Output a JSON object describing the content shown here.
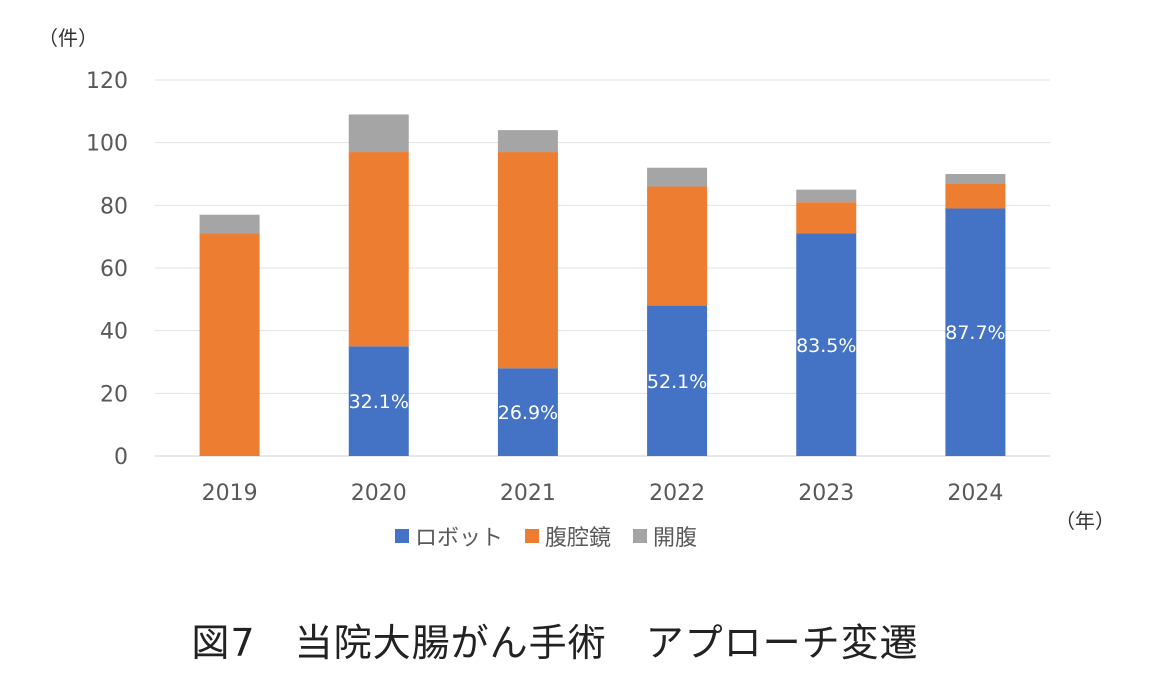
{
  "chart_data": {
    "type": "bar",
    "stacked": true,
    "title": "図7　当院大腸がん手術　アプローチ変遷",
    "ylabel": "（件）",
    "xlabel": "（年）",
    "ylim": [
      0,
      120
    ],
    "yticks": [
      0,
      20,
      40,
      60,
      80,
      100,
      120
    ],
    "grid": true,
    "legend_position": "bottom",
    "categories": [
      "2019",
      "2020",
      "2021",
      "2022",
      "2023",
      "2024"
    ],
    "series": [
      {
        "name": "ロボット",
        "color": "#4472c4",
        "values": [
          0,
          35,
          28,
          48,
          71,
          79
        ]
      },
      {
        "name": "腹腔鏡",
        "color": "#ed7d31",
        "values": [
          71,
          62,
          69,
          38,
          10,
          8
        ]
      },
      {
        "name": "開腹",
        "color": "#a5a5a5",
        "values": [
          6,
          12,
          7,
          6,
          4,
          3
        ]
      }
    ],
    "data_labels": [
      "",
      "32.1%",
      "26.9%",
      "52.1%",
      "83.5%",
      "87.7%"
    ]
  }
}
